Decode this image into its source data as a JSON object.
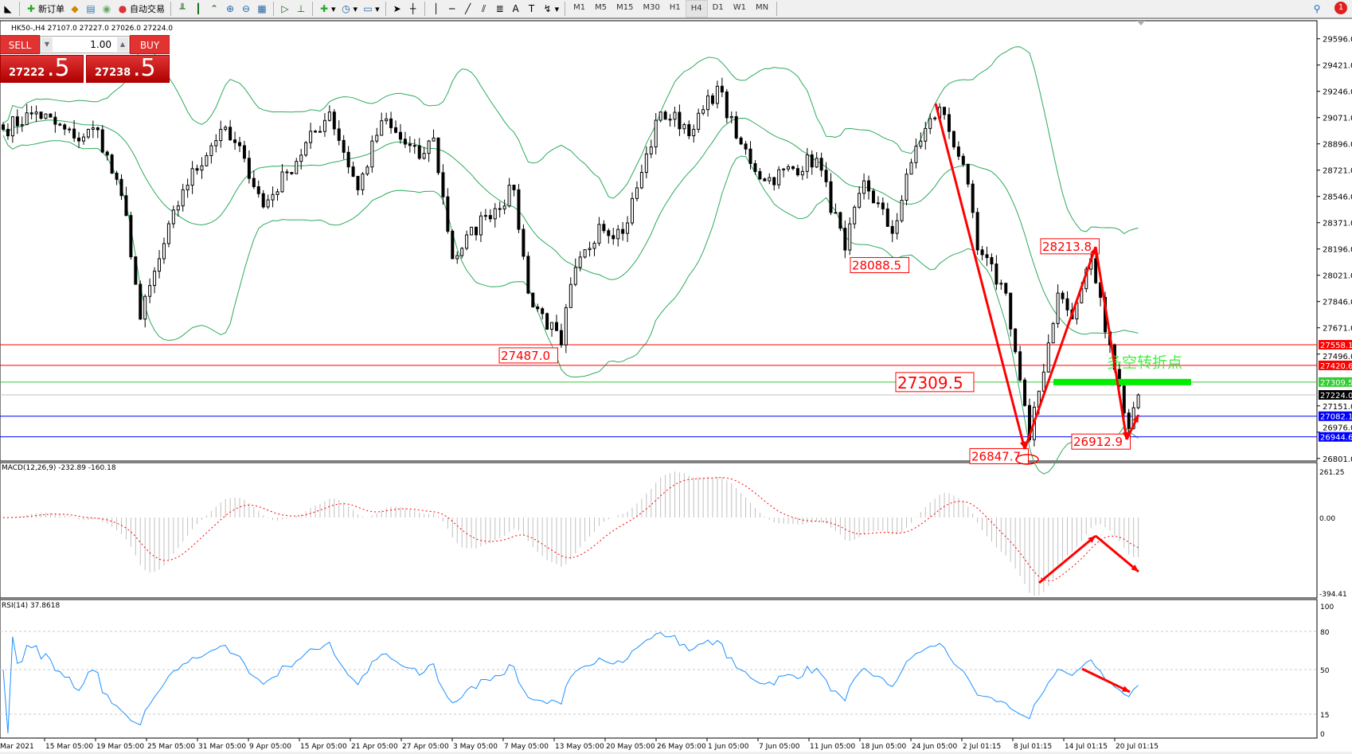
{
  "toolbar": {
    "new_order": "新订单",
    "auto_trading": "自动交易",
    "timeframes": [
      "M1",
      "M5",
      "M15",
      "M30",
      "H1",
      "H4",
      "D1",
      "W1",
      "MN"
    ],
    "active_timeframe": "H4",
    "notification_count": "1",
    "icons": [
      "new-order-icon",
      "market-watch-icon",
      "navigator-icon",
      "signal-icon",
      "auto-trading-icon",
      "bar-chart-icon",
      "candlestick-icon",
      "line-chart-icon",
      "zoom-in-icon",
      "zoom-out-icon",
      "tile-windows-icon",
      "chart-shift-icon",
      "autoscroll-icon",
      "indicators-icon",
      "periods-icon",
      "templates-icon",
      "cursor-icon",
      "crosshair-icon",
      "vertical-line-icon",
      "horizontal-line-icon",
      "trendline-icon",
      "equidistant-channel-icon",
      "fibonacci-icon",
      "text-icon",
      "text-label-icon",
      "arrows-icon",
      "search-icon",
      "notification-icon"
    ]
  },
  "chart": {
    "symbol_info": "HK50-,H4  27107.0 27227.0 27026.0 27224.0",
    "one_click": {
      "sell": "SELL",
      "buy": "BUY",
      "lot": "1.00",
      "bid_main": "27222",
      "bid_pip": ".5",
      "ask_main": "27238",
      "ask_pip": ".5"
    },
    "price_ticks": [
      "29596.0",
      "29421.0",
      "29246.0",
      "29071.0",
      "28896.0",
      "28721.0",
      "28546.0",
      "28371.0",
      "28196.0",
      "28021.0",
      "27846.0",
      "27671.0",
      "27496.0",
      "27151.0",
      "26976.0",
      "26801.0"
    ],
    "levels": [
      {
        "price": 27558.1,
        "label": "27558.1",
        "color": "#ff0000"
      },
      {
        "price": 27420.6,
        "label": "27420.6",
        "color": "#ff0000"
      },
      {
        "price": 27309.5,
        "label": "27309.5",
        "color": "#33cc33"
      },
      {
        "price": 27224.0,
        "label": "27224.0",
        "color": "#000000"
      },
      {
        "price": 27082.1,
        "label": "27082.1",
        "color": "#0000ff"
      },
      {
        "price": 26944.6,
        "label": "26944.6",
        "color": "#0000ff"
      }
    ],
    "annotations": [
      "28088.5",
      "27487.0",
      "27309.5",
      "28213.8",
      "26847.7",
      "26912.9"
    ],
    "pivot_text": "多空转折点",
    "colors": {
      "bands": "#2eaa5c",
      "arrows": "#ff0000",
      "pivot_bar": "#00ee00",
      "macd_hist": "#c0c0c0",
      "macd_signal": "#ff0000",
      "rsi": "#1e90ff"
    },
    "price_path": [
      [
        0,
        28993
      ],
      [
        7,
        29108
      ],
      [
        15,
        28935
      ],
      [
        20,
        28990
      ],
      [
        26,
        28419
      ],
      [
        29,
        27729
      ],
      [
        33,
        28131
      ],
      [
        38,
        28590
      ],
      [
        46,
        28993
      ],
      [
        51,
        28800
      ],
      [
        55,
        28476
      ],
      [
        60,
        28706
      ],
      [
        69,
        29108
      ],
      [
        75,
        28590
      ],
      [
        80,
        29050
      ],
      [
        88,
        28800
      ],
      [
        91,
        28935
      ],
      [
        95,
        28131
      ],
      [
        102,
        28419
      ],
      [
        108,
        28590
      ],
      [
        111,
        27902
      ],
      [
        118,
        27557
      ],
      [
        120,
        27960
      ],
      [
        126,
        28360
      ],
      [
        131,
        28300
      ],
      [
        135,
        28706
      ],
      [
        139,
        29108
      ],
      [
        146,
        28993
      ],
      [
        151,
        29280
      ],
      [
        155,
        28935
      ],
      [
        161,
        28650
      ],
      [
        172,
        28800
      ],
      [
        178,
        28189
      ],
      [
        182,
        28650
      ],
      [
        188,
        28300
      ],
      [
        193,
        28880
      ],
      [
        198,
        29140
      ],
      [
        203,
        28760
      ],
      [
        206,
        28190
      ],
      [
        212,
        27902
      ],
      [
        217,
        26926
      ],
      [
        223,
        27902
      ],
      [
        226,
        27730
      ],
      [
        230,
        28131
      ],
      [
        234,
        27557
      ],
      [
        238,
        27000
      ],
      [
        240,
        27224
      ]
    ]
  },
  "macd": {
    "label": "MACD(12,26,9) -232.89 -160.18",
    "ticks": [
      "261.25",
      "0.00",
      "-394.41"
    ]
  },
  "rsi": {
    "label": "RSI(14) 37.8618",
    "ticks": [
      "100",
      "80",
      "50",
      "15",
      "0"
    ]
  },
  "time_axis": [
    "Mar 2021",
    "15 Mar 05:00",
    "19 Mar 05:00",
    "25 Mar 05:00",
    "31 Mar 05:00",
    "9 Apr 05:00",
    "15 Apr 05:00",
    "21 Apr 05:00",
    "27 Apr 05:00",
    "3 May 05:00",
    "7 May 05:00",
    "13 May 05:00",
    "20 May 05:00",
    "26 May 05:00",
    "1 Jun 05:00",
    "7 Jun 05:00",
    "11 Jun 05:00",
    "18 Jun 05:00",
    "24 Jun 05:00",
    "2 Jul 01:15",
    "8 Jul 01:15",
    "14 Jul 01:15",
    "20 Jul 01:15"
  ]
}
